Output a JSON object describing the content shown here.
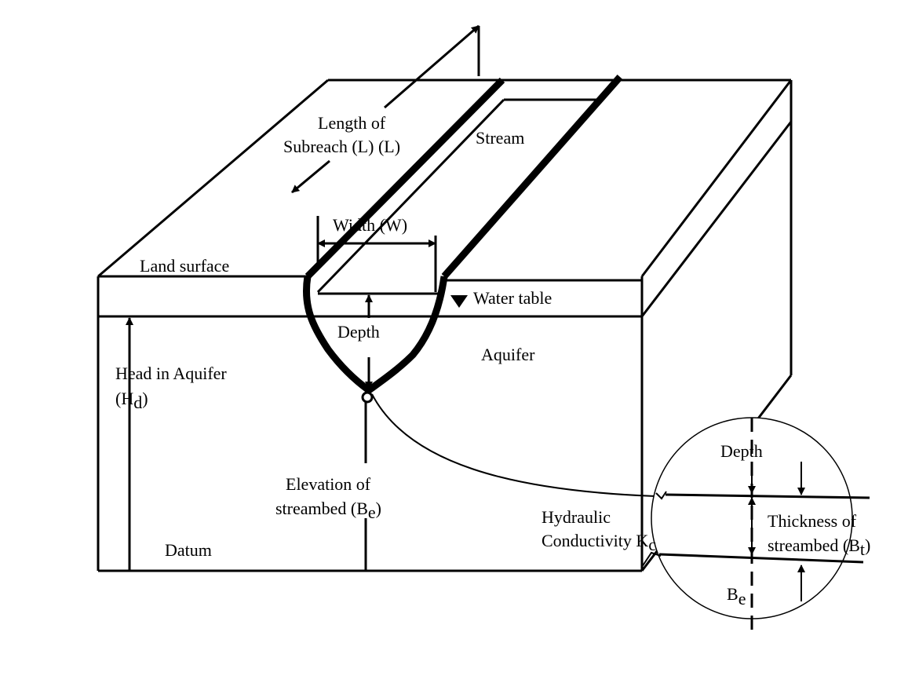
{
  "labels": {
    "length_line1": "Length of",
    "length_line2": "Subreach (L) (L)",
    "stream": "Stream",
    "width": "Width (W)",
    "land_surface": "Land surface",
    "water_table": "Water table",
    "depth": "Depth",
    "aquifer": "Aquifer",
    "head_line1": "Head in Aquifer",
    "head_line2_prefix": "(H",
    "head_line2_sub": "d",
    "head_line2_suffix": ")",
    "elev_line1": "Elevation of",
    "elev_line2_prefix": "streambed (B",
    "elev_line2_sub": "e",
    "elev_line2_suffix": ")",
    "datum": "Datum",
    "hyd_line1": "Hydraulic",
    "hyd_line2_prefix": "Conductivity K",
    "hyd_line2_sub": "c",
    "detail_depth": "Depth",
    "thick_line1": "Thickness of",
    "thick_line2_prefix": "streambed (B",
    "thick_line2_sub": "t",
    "thick_line2_suffix": ")",
    "be_prefix": "B",
    "be_sub": "e"
  }
}
